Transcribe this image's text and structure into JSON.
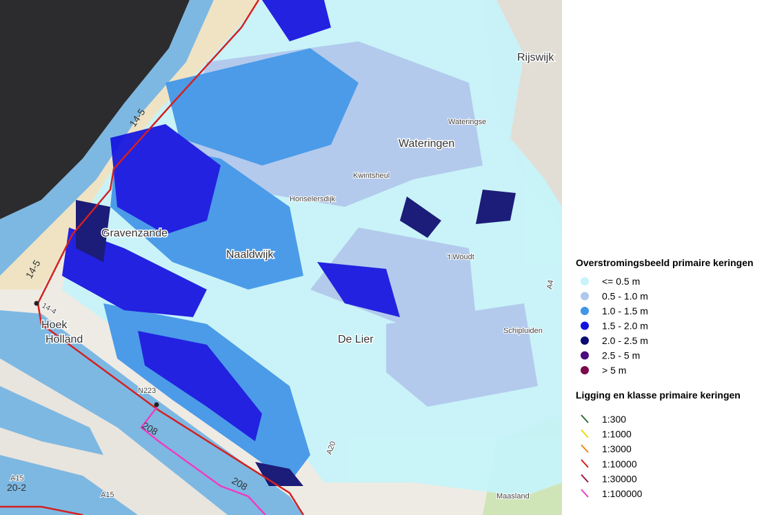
{
  "map": {
    "labels": [
      "Rijswijk",
      "Wateringen",
      "Wateringse",
      "Kwintsheul",
      "Gravenzande",
      "Naaldwijk",
      "Honselersdijk",
      "De Lier",
      "Hoek",
      "Holland",
      "Maasland",
      "Schipluiden",
      "'t Woudt",
      "14-5",
      "14-5",
      "14-4",
      "208",
      "208",
      "A15",
      "A15",
      "N223",
      "A20",
      "20-2",
      "A4"
    ]
  },
  "legend": {
    "flood": {
      "title": "Overstromingsbeeld primaire keringen",
      "items": [
        {
          "label": "<= 0.5 m",
          "color": "#c6f4fa"
        },
        {
          "label": "0.5 - 1.0 m",
          "color": "#aec8ee"
        },
        {
          "label": "1.0 - 1.5 m",
          "color": "#3e95ea"
        },
        {
          "label": "1.5 - 2.0 m",
          "color": "#1212e0"
        },
        {
          "label": "2.0 - 2.5 m",
          "color": "#0b0b70"
        },
        {
          "label": "2.5 - 5 m",
          "color": "#4c0a7c"
        },
        {
          "label": "> 5 m",
          "color": "#7a0a4c"
        }
      ]
    },
    "levees": {
      "title": "Ligging en klasse primaire keringen",
      "items": [
        {
          "label": "1:300",
          "color": "#2e6b2e"
        },
        {
          "label": "1:1000",
          "color": "#f0dc10"
        },
        {
          "label": "1:3000",
          "color": "#f08c1c"
        },
        {
          "label": "1:10000",
          "color": "#d42020"
        },
        {
          "label": "1:30000",
          "color": "#9c1e4c"
        },
        {
          "label": "1:100000",
          "color": "#f03cc0"
        }
      ]
    }
  }
}
